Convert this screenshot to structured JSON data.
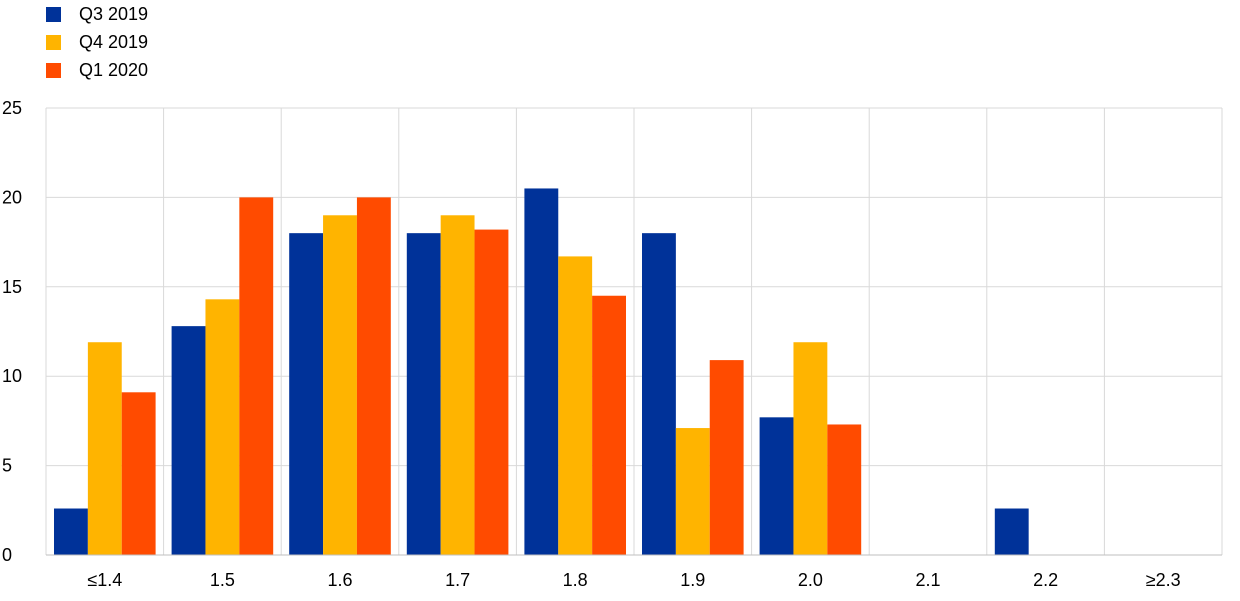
{
  "chart_data": {
    "type": "bar",
    "title": "",
    "xlabel": "",
    "ylabel": "",
    "categories": [
      "≤1.4",
      "1.5",
      "1.6",
      "1.7",
      "1.8",
      "1.9",
      "2.0",
      "2.1",
      "2.2",
      "≥2.3"
    ],
    "series": [
      {
        "name": "Q3 2019",
        "color": "#003299",
        "values": [
          2.6,
          12.8,
          18.0,
          18.0,
          20.5,
          18.0,
          7.7,
          0,
          2.6,
          0
        ]
      },
      {
        "name": "Q4 2019",
        "color": "#FFB400",
        "values": [
          11.9,
          14.3,
          19.0,
          19.0,
          16.7,
          7.1,
          11.9,
          0,
          0,
          0
        ]
      },
      {
        "name": "Q1 2020",
        "color": "#FF4B00",
        "values": [
          9.1,
          20.0,
          20.0,
          18.2,
          14.5,
          10.9,
          7.3,
          0,
          0,
          0
        ]
      }
    ],
    "ylim": [
      0,
      25
    ],
    "yticks": [
      0,
      5,
      10,
      15,
      20,
      25
    ],
    "grid": true,
    "legend": "top-left"
  }
}
